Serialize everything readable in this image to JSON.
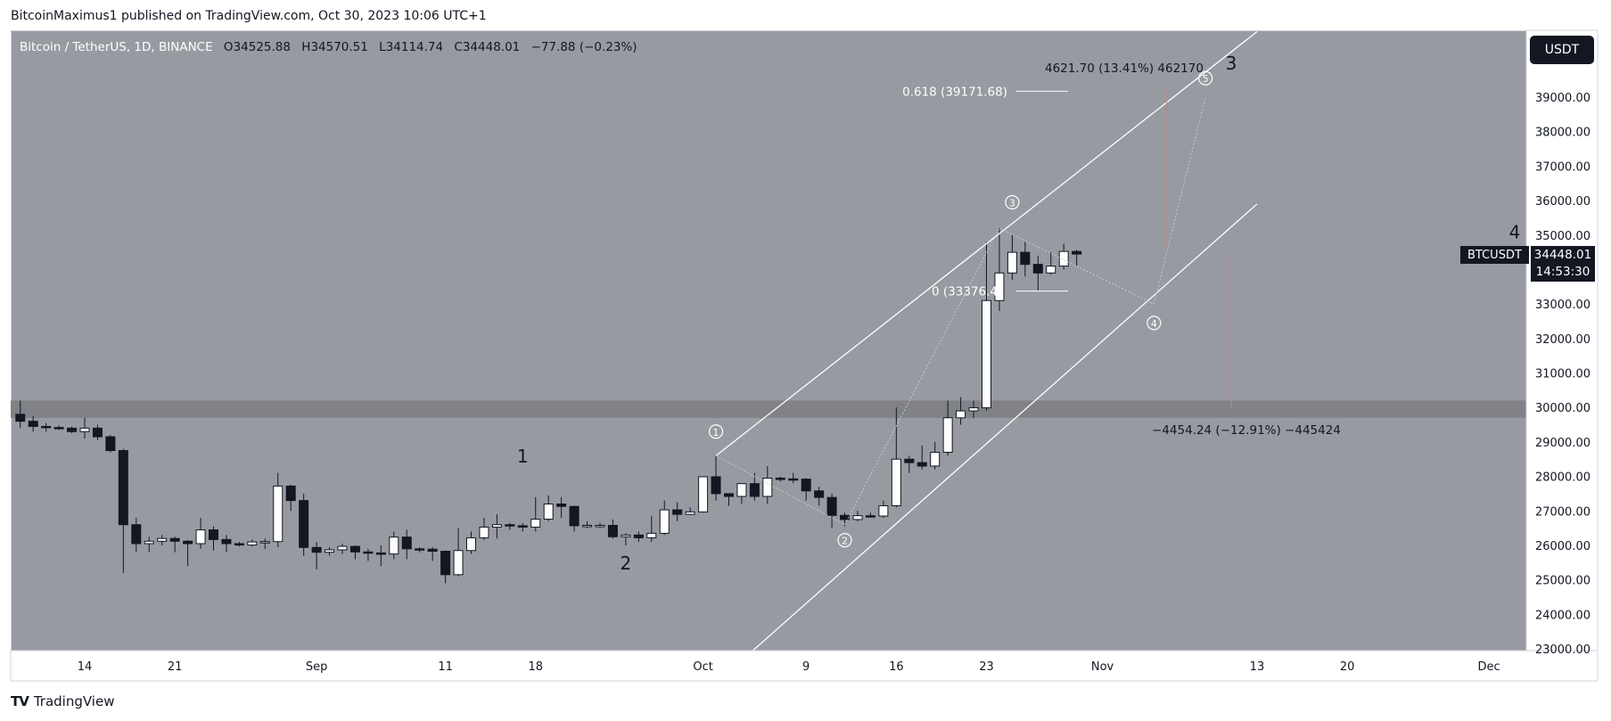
{
  "credit": "BitcoinMaximus1 published on TradingView.com, Oct 30, 2023 10:06 UTC+1",
  "legend": {
    "symbol": "Bitcoin / TetherUS, 1D, BINANCE",
    "open_label": "O",
    "open": "34525.88",
    "high_label": "H",
    "high": "34570.51",
    "low_label": "L",
    "low": "34114.74",
    "close_label": "C",
    "close": "34448.01",
    "change": "−77.88 (−0.23%)"
  },
  "currency": "USDT",
  "price_tag": {
    "symbol": "BTCUSDT",
    "price": "34448.01",
    "countdown": "14:53:30"
  },
  "footer": {
    "brand": "TradingView"
  },
  "colors": {
    "background": "#989aa1",
    "axis_bg": "#ffffff",
    "bull": "#ffffff",
    "bear": "#131722",
    "support_zone": "#808287",
    "channel": "#ffffff"
  },
  "chart_data": {
    "type": "candlestick",
    "ylim": [
      22000,
      40000
    ],
    "y_ticks": [
      "39000.00",
      "38000.00",
      "37000.00",
      "36000.00",
      "35000.00",
      "34000.00",
      "33000.00",
      "32000.00",
      "31000.00",
      "30000.00",
      "29000.00",
      "28000.00",
      "27000.00",
      "26000.00",
      "25000.00",
      "24000.00",
      "23000.00"
    ],
    "x_ticks": [
      {
        "label": "14",
        "date": "2023-08-14"
      },
      {
        "label": "21",
        "date": "2023-08-21"
      },
      {
        "label": "Sep",
        "date": "2023-09-01"
      },
      {
        "label": "11",
        "date": "2023-09-11"
      },
      {
        "label": "18",
        "date": "2023-09-18"
      },
      {
        "label": "Oct",
        "date": "2023-10-01"
      },
      {
        "label": "9",
        "date": "2023-10-09"
      },
      {
        "label": "16",
        "date": "2023-10-16"
      },
      {
        "label": "23",
        "date": "2023-10-23"
      },
      {
        "label": "Nov",
        "date": "2023-11-01"
      },
      {
        "label": "13",
        "date": "2023-11-13"
      },
      {
        "label": "20",
        "date": "2023-11-20"
      },
      {
        "label": "Dec",
        "date": "2023-12-01"
      }
    ],
    "support_zone": [
      29700,
      30200
    ],
    "candles": [
      {
        "d": "2023-08-09",
        "o": 29800,
        "h": 30200,
        "l": 29400,
        "c": 29600
      },
      {
        "d": "2023-08-10",
        "o": 29600,
        "h": 29750,
        "l": 29300,
        "c": 29450
      },
      {
        "d": "2023-08-11",
        "o": 29450,
        "h": 29550,
        "l": 29300,
        "c": 29420
      },
      {
        "d": "2023-08-12",
        "o": 29420,
        "h": 29480,
        "l": 29350,
        "c": 29400
      },
      {
        "d": "2023-08-13",
        "o": 29400,
        "h": 29450,
        "l": 29250,
        "c": 29300
      },
      {
        "d": "2023-08-14",
        "o": 29300,
        "h": 29700,
        "l": 29100,
        "c": 29400
      },
      {
        "d": "2023-08-15",
        "o": 29400,
        "h": 29500,
        "l": 29050,
        "c": 29150
      },
      {
        "d": "2023-08-16",
        "o": 29150,
        "h": 29200,
        "l": 28700,
        "c": 28750
      },
      {
        "d": "2023-08-17",
        "o": 28750,
        "h": 28800,
        "l": 25200,
        "c": 26600
      },
      {
        "d": "2023-08-18",
        "o": 26600,
        "h": 26800,
        "l": 25800,
        "c": 26050
      },
      {
        "d": "2023-08-19",
        "o": 26050,
        "h": 26250,
        "l": 25800,
        "c": 26120
      },
      {
        "d": "2023-08-20",
        "o": 26120,
        "h": 26300,
        "l": 26000,
        "c": 26200
      },
      {
        "d": "2023-08-21",
        "o": 26200,
        "h": 26250,
        "l": 25800,
        "c": 26120
      },
      {
        "d": "2023-08-22",
        "o": 26120,
        "h": 26150,
        "l": 25400,
        "c": 26050
      },
      {
        "d": "2023-08-23",
        "o": 26050,
        "h": 26800,
        "l": 25900,
        "c": 26450
      },
      {
        "d": "2023-08-24",
        "o": 26450,
        "h": 26550,
        "l": 25850,
        "c": 26170
      },
      {
        "d": "2023-08-25",
        "o": 26170,
        "h": 26300,
        "l": 25800,
        "c": 26050
      },
      {
        "d": "2023-08-26",
        "o": 26050,
        "h": 26100,
        "l": 25970,
        "c": 26010
      },
      {
        "d": "2023-08-27",
        "o": 26010,
        "h": 26170,
        "l": 25970,
        "c": 26100
      },
      {
        "d": "2023-08-28",
        "o": 26100,
        "h": 26200,
        "l": 25900,
        "c": 26110
      },
      {
        "d": "2023-08-29",
        "o": 26110,
        "h": 28100,
        "l": 25950,
        "c": 27720
      },
      {
        "d": "2023-08-30",
        "o": 27720,
        "h": 27760,
        "l": 27000,
        "c": 27300
      },
      {
        "d": "2023-08-31",
        "o": 27300,
        "h": 27500,
        "l": 25700,
        "c": 25940
      },
      {
        "d": "2023-09-01",
        "o": 25940,
        "h": 26100,
        "l": 25300,
        "c": 25800
      },
      {
        "d": "2023-09-02",
        "o": 25800,
        "h": 25950,
        "l": 25700,
        "c": 25870
      },
      {
        "d": "2023-09-03",
        "o": 25870,
        "h": 26050,
        "l": 25750,
        "c": 25970
      },
      {
        "d": "2023-09-04",
        "o": 25970,
        "h": 26000,
        "l": 25600,
        "c": 25810
      },
      {
        "d": "2023-09-05",
        "o": 25810,
        "h": 25900,
        "l": 25550,
        "c": 25780
      },
      {
        "d": "2023-09-06",
        "o": 25780,
        "h": 26000,
        "l": 25400,
        "c": 25750
      },
      {
        "d": "2023-09-07",
        "o": 25750,
        "h": 26400,
        "l": 25600,
        "c": 26240
      },
      {
        "d": "2023-09-08",
        "o": 26240,
        "h": 26450,
        "l": 25600,
        "c": 25900
      },
      {
        "d": "2023-09-09",
        "o": 25900,
        "h": 25950,
        "l": 25800,
        "c": 25890
      },
      {
        "d": "2023-09-10",
        "o": 25890,
        "h": 25950,
        "l": 25550,
        "c": 25830
      },
      {
        "d": "2023-09-11",
        "o": 25830,
        "h": 25850,
        "l": 24900,
        "c": 25150
      },
      {
        "d": "2023-09-12",
        "o": 25150,
        "h": 26500,
        "l": 25100,
        "c": 25850
      },
      {
        "d": "2023-09-13",
        "o": 25850,
        "h": 26400,
        "l": 25750,
        "c": 26220
      },
      {
        "d": "2023-09-14",
        "o": 26220,
        "h": 26800,
        "l": 26150,
        "c": 26530
      },
      {
        "d": "2023-09-15",
        "o": 26530,
        "h": 26900,
        "l": 26200,
        "c": 26600
      },
      {
        "d": "2023-09-16",
        "o": 26600,
        "h": 26650,
        "l": 26450,
        "c": 26570
      },
      {
        "d": "2023-09-17",
        "o": 26570,
        "h": 26650,
        "l": 26400,
        "c": 26530
      },
      {
        "d": "2023-09-18",
        "o": 26530,
        "h": 27400,
        "l": 26400,
        "c": 26760
      },
      {
        "d": "2023-09-19",
        "o": 26760,
        "h": 27450,
        "l": 26700,
        "c": 27200
      },
      {
        "d": "2023-09-20",
        "o": 27200,
        "h": 27400,
        "l": 26800,
        "c": 27130
      },
      {
        "d": "2023-09-21",
        "o": 27130,
        "h": 27150,
        "l": 26400,
        "c": 26570
      },
      {
        "d": "2023-09-22",
        "o": 26570,
        "h": 26700,
        "l": 26500,
        "c": 26580
      },
      {
        "d": "2023-09-23",
        "o": 26580,
        "h": 26650,
        "l": 26500,
        "c": 26580
      },
      {
        "d": "2023-09-24",
        "o": 26580,
        "h": 26750,
        "l": 26200,
        "c": 26250
      },
      {
        "d": "2023-09-25",
        "o": 26250,
        "h": 26350,
        "l": 26000,
        "c": 26300
      },
      {
        "d": "2023-09-26",
        "o": 26300,
        "h": 26400,
        "l": 26100,
        "c": 26220
      },
      {
        "d": "2023-09-27",
        "o": 26220,
        "h": 26850,
        "l": 26100,
        "c": 26350
      },
      {
        "d": "2023-09-28",
        "o": 26350,
        "h": 27300,
        "l": 26300,
        "c": 27030
      },
      {
        "d": "2023-09-29",
        "o": 27030,
        "h": 27250,
        "l": 26700,
        "c": 26900
      },
      {
        "d": "2023-09-30",
        "o": 26900,
        "h": 27100,
        "l": 26900,
        "c": 26970
      },
      {
        "d": "2023-10-01",
        "o": 26970,
        "h": 28000,
        "l": 26950,
        "c": 27990
      },
      {
        "d": "2023-10-02",
        "o": 27990,
        "h": 28600,
        "l": 27300,
        "c": 27500
      },
      {
        "d": "2023-10-03",
        "o": 27500,
        "h": 27500,
        "l": 27150,
        "c": 27420
      },
      {
        "d": "2023-10-04",
        "o": 27420,
        "h": 27800,
        "l": 27200,
        "c": 27790
      },
      {
        "d": "2023-10-05",
        "o": 27790,
        "h": 28100,
        "l": 27300,
        "c": 27420
      },
      {
        "d": "2023-10-06",
        "o": 27420,
        "h": 28300,
        "l": 27200,
        "c": 27950
      },
      {
        "d": "2023-10-07",
        "o": 27950,
        "h": 28000,
        "l": 27850,
        "c": 27930
      },
      {
        "d": "2023-10-08",
        "o": 27930,
        "h": 28100,
        "l": 27800,
        "c": 27920
      },
      {
        "d": "2023-10-09",
        "o": 27920,
        "h": 27950,
        "l": 27300,
        "c": 27580
      },
      {
        "d": "2023-10-10",
        "o": 27580,
        "h": 27700,
        "l": 27150,
        "c": 27390
      },
      {
        "d": "2023-10-11",
        "o": 27390,
        "h": 27500,
        "l": 26500,
        "c": 26870
      },
      {
        "d": "2023-10-12",
        "o": 26870,
        "h": 26950,
        "l": 26550,
        "c": 26750
      },
      {
        "d": "2023-10-13",
        "o": 26750,
        "h": 27000,
        "l": 26700,
        "c": 26860
      },
      {
        "d": "2023-10-14",
        "o": 26860,
        "h": 26950,
        "l": 26800,
        "c": 26850
      },
      {
        "d": "2023-10-15",
        "o": 26850,
        "h": 27300,
        "l": 26800,
        "c": 27150
      },
      {
        "d": "2023-10-16",
        "o": 27150,
        "h": 30000,
        "l": 27100,
        "c": 28500
      },
      {
        "d": "2023-10-17",
        "o": 28500,
        "h": 28600,
        "l": 28100,
        "c": 28400
      },
      {
        "d": "2023-10-18",
        "o": 28400,
        "h": 28900,
        "l": 28200,
        "c": 28300
      },
      {
        "d": "2023-10-19",
        "o": 28300,
        "h": 29000,
        "l": 28200,
        "c": 28700
      },
      {
        "d": "2023-10-20",
        "o": 28700,
        "h": 30200,
        "l": 28600,
        "c": 29700
      },
      {
        "d": "2023-10-21",
        "o": 29700,
        "h": 30300,
        "l": 29500,
        "c": 29900
      },
      {
        "d": "2023-10-22",
        "o": 29900,
        "h": 30200,
        "l": 29700,
        "c": 29990
      },
      {
        "d": "2023-10-23",
        "o": 29990,
        "h": 34800,
        "l": 29900,
        "c": 33100
      },
      {
        "d": "2023-10-24",
        "o": 33100,
        "h": 35200,
        "l": 32800,
        "c": 33900
      },
      {
        "d": "2023-10-25",
        "o": 33900,
        "h": 35000,
        "l": 33700,
        "c": 34500
      },
      {
        "d": "2023-10-26",
        "o": 34500,
        "h": 34800,
        "l": 33800,
        "c": 34150
      },
      {
        "d": "2023-10-27",
        "o": 34150,
        "h": 34400,
        "l": 33400,
        "c": 33900
      },
      {
        "d": "2023-10-28",
        "o": 33900,
        "h": 34500,
        "l": 33850,
        "c": 34100
      },
      {
        "d": "2023-10-29",
        "o": 34100,
        "h": 34750,
        "l": 34000,
        "c": 34525
      },
      {
        "d": "2023-10-30",
        "o": 34525,
        "h": 34570,
        "l": 34114,
        "c": 34448
      }
    ],
    "channel": {
      "upper": [
        {
          "d": "2023-10-02",
          "y": 28600
        },
        {
          "d": "2023-11-13",
          "y": 40900
        }
      ],
      "lower": [
        {
          "d": "2023-10-02",
          "y": 22000
        },
        {
          "d": "2023-11-13",
          "y": 35900
        }
      ]
    },
    "wave_path": [
      {
        "d": "2023-10-02",
        "y": 28600
      },
      {
        "d": "2023-10-12",
        "y": 26600
      },
      {
        "d": "2023-10-24",
        "y": 35200
      },
      {
        "d": "2023-11-05",
        "y": 33000
      },
      {
        "d": "2023-11-09",
        "y": 39000
      }
    ],
    "wave_labels": [
      {
        "text": "1",
        "d": "2023-10-02",
        "y": 29300
      },
      {
        "text": "2",
        "d": "2023-10-12",
        "y": 26150
      },
      {
        "text": "3",
        "d": "2023-10-25",
        "y": 35950
      },
      {
        "text": "4",
        "d": "2023-11-05",
        "y": 32450
      },
      {
        "text": "5",
        "d": "2023-11-09",
        "y": 39550
      }
    ],
    "degree_labels": [
      {
        "text": "1",
        "d": "2023-09-17",
        "y": 28400
      },
      {
        "text": "2",
        "d": "2023-09-25",
        "y": 25300
      },
      {
        "text": "3",
        "d": "2023-11-11",
        "y": 39800
      },
      {
        "text": "4",
        "d": "2023-12-03",
        "y": 34900
      }
    ],
    "fib": [
      {
        "label": "0.618 (39171.68)",
        "y": 39171.68
      },
      {
        "label": "0 (33376.4",
        "y": 33376.4
      }
    ],
    "measure_up": {
      "text": "4621.70 (13.41%) 462170",
      "d": "2023-11-06",
      "y_from": 34550,
      "y_to": 39200
    },
    "measure_down": {
      "text": "−4454.24 (−12.91%) −445424",
      "d": "2023-11-11",
      "y_from": 34450,
      "y_to": 30000
    }
  }
}
